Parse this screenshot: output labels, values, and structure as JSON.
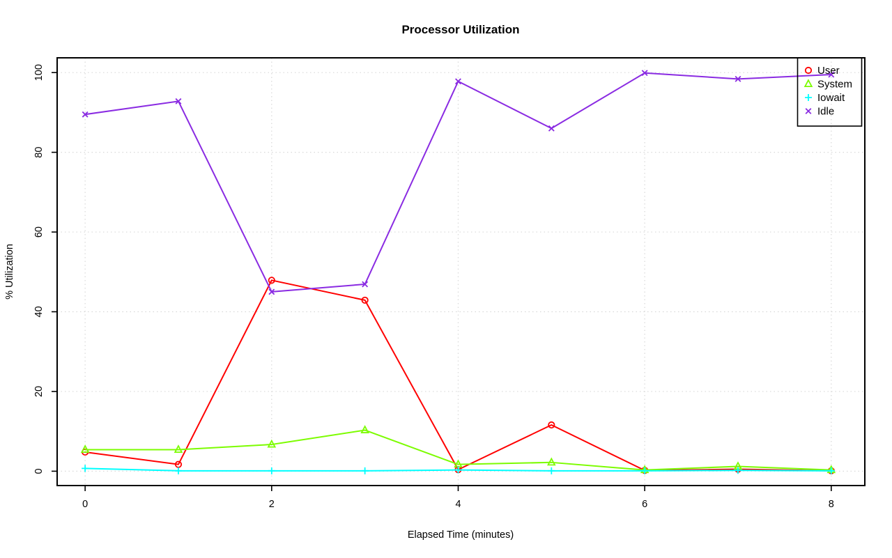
{
  "chart_data": {
    "type": "line",
    "title": "Processor Utilization",
    "xlabel": "Elapsed Time (minutes)",
    "ylabel": "% Utilization",
    "x": [
      0,
      1,
      2,
      3,
      4,
      5,
      6,
      7,
      8
    ],
    "xticks": [
      0,
      2,
      4,
      6,
      8
    ],
    "yticks": [
      0,
      20,
      40,
      60,
      80,
      100
    ],
    "xlim": [
      -0.3,
      8.36
    ],
    "ylim": [
      -3.6,
      103.7
    ],
    "grid": true,
    "grid_style": "dotted",
    "legend_position": "topright",
    "series": [
      {
        "name": "User",
        "color": "#ff0000",
        "marker": "circle",
        "values": [
          4.8,
          1.7,
          47.9,
          42.9,
          0.4,
          11.6,
          0.2,
          0.5,
          0.1
        ]
      },
      {
        "name": "System",
        "color": "#7cfc00",
        "marker": "triangle",
        "values": [
          5.4,
          5.4,
          6.7,
          10.3,
          1.7,
          2.2,
          0.3,
          1.2,
          0.3
        ]
      },
      {
        "name": "Iowait",
        "color": "#00ffff",
        "marker": "plus",
        "values": [
          0.7,
          0.1,
          0.1,
          0.1,
          0.3,
          0.1,
          0.1,
          0.2,
          0.1
        ]
      },
      {
        "name": "Idle",
        "color": "#8a2be2",
        "marker": "x",
        "values": [
          89.5,
          92.8,
          45.0,
          46.9,
          97.8,
          86.0,
          99.9,
          98.4,
          99.5
        ]
      }
    ]
  },
  "colors": {
    "background": "#ffffff",
    "axis": "#000000",
    "grid": "#d8d8d8"
  }
}
